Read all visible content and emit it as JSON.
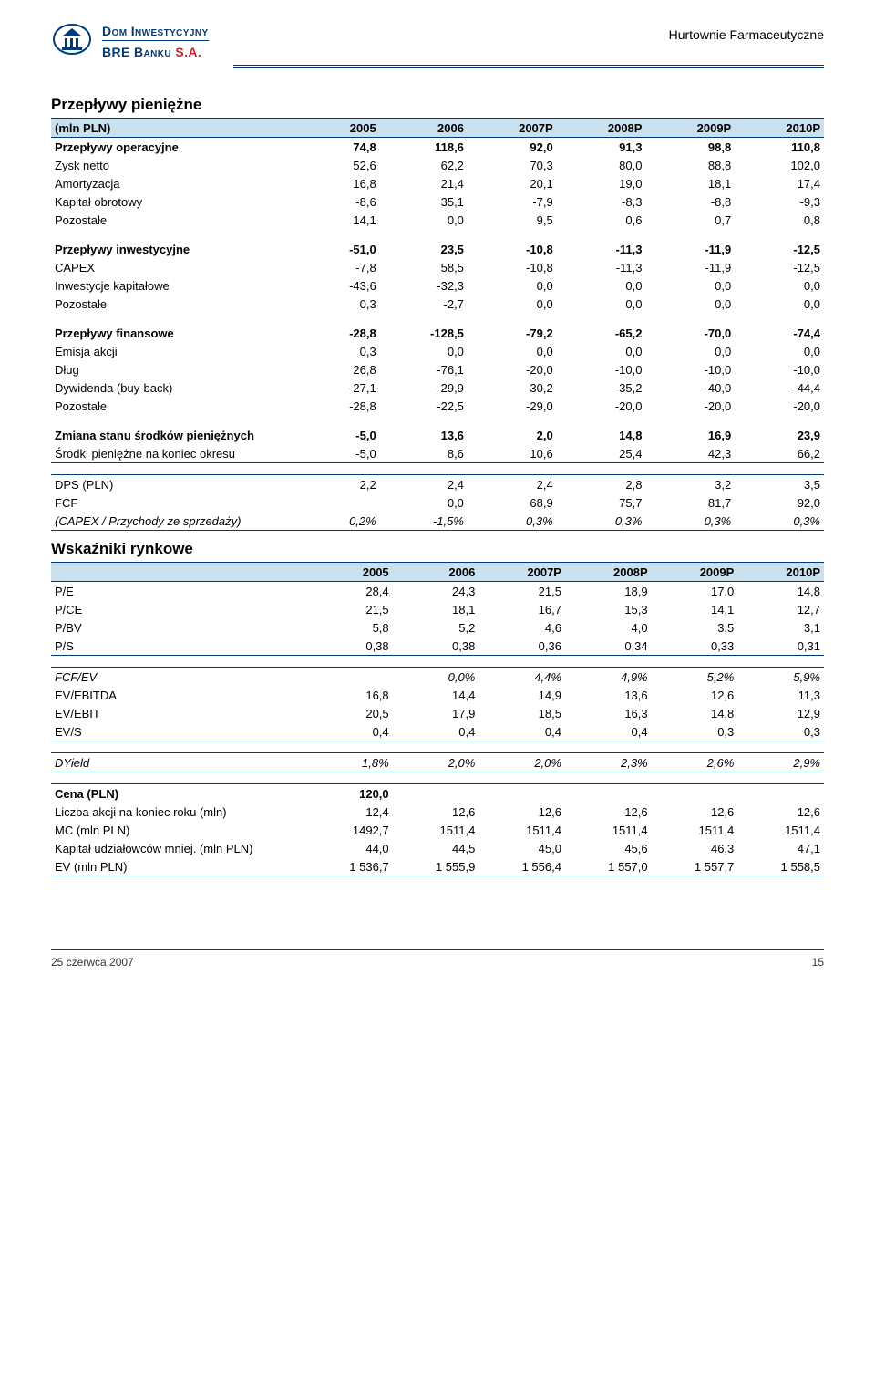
{
  "header": {
    "logo_line1_a": "Dom ",
    "logo_line1_b": "Inwestycyjny",
    "logo_line2_a": "BRE Banku ",
    "logo_line2_sa": "S.A.",
    "right_text": "Hurtownie Farmaceutyczne"
  },
  "section1": {
    "title": "Przepływy pieniężne",
    "columns": [
      "(mln PLN)",
      "2005",
      "2006",
      "2007P",
      "2008P",
      "2009P",
      "2010P"
    ],
    "rows": [
      {
        "label": "Przepływy operacyjne",
        "v": [
          "74,8",
          "118,6",
          "92,0",
          "91,3",
          "98,8",
          "110,8"
        ],
        "bold": true
      },
      {
        "label": "Zysk netto",
        "v": [
          "52,6",
          "62,2",
          "70,3",
          "80,0",
          "88,8",
          "102,0"
        ]
      },
      {
        "label": "Amortyzacja",
        "v": [
          "16,8",
          "21,4",
          "20,1",
          "19,0",
          "18,1",
          "17,4"
        ]
      },
      {
        "label": "Kapitał obrotowy",
        "v": [
          "-8,6",
          "35,1",
          "-7,9",
          "-8,3",
          "-8,8",
          "-9,3"
        ]
      },
      {
        "label": "Pozostałe",
        "v": [
          "14,1",
          "0,0",
          "9,5",
          "0,6",
          "0,7",
          "0,8"
        ]
      },
      {
        "spacer": true
      },
      {
        "label": "Przepływy inwestycyjne",
        "v": [
          "-51,0",
          "23,5",
          "-10,8",
          "-11,3",
          "-11,9",
          "-12,5"
        ],
        "bold": true
      },
      {
        "label": "CAPEX",
        "v": [
          "-7,8",
          "58,5",
          "-10,8",
          "-11,3",
          "-11,9",
          "-12,5"
        ]
      },
      {
        "label": "Inwestycje kapitałowe",
        "v": [
          "-43,6",
          "-32,3",
          "0,0",
          "0,0",
          "0,0",
          "0,0"
        ]
      },
      {
        "label": "Pozostałe",
        "v": [
          "0,3",
          "-2,7",
          "0,0",
          "0,0",
          "0,0",
          "0,0"
        ]
      },
      {
        "spacer": true
      },
      {
        "label": "Przepływy finansowe",
        "v": [
          "-28,8",
          "-128,5",
          "-79,2",
          "-65,2",
          "-70,0",
          "-74,4"
        ],
        "bold": true
      },
      {
        "label": "Emisja akcji",
        "v": [
          "0,3",
          "0,0",
          "0,0",
          "0,0",
          "0,0",
          "0,0"
        ]
      },
      {
        "label": "Dług",
        "v": [
          "26,8",
          "-76,1",
          "-20,0",
          "-10,0",
          "-10,0",
          "-10,0"
        ]
      },
      {
        "label": "Dywidenda (buy-back)",
        "v": [
          "-27,1",
          "-29,9",
          "-30,2",
          "-35,2",
          "-40,0",
          "-44,4"
        ]
      },
      {
        "label": "Pozostałe",
        "v": [
          "-28,8",
          "-22,5",
          "-29,0",
          "-20,0",
          "-20,0",
          "-20,0"
        ]
      },
      {
        "spacer": true
      },
      {
        "label": "Zmiana stanu środków pieniężnych",
        "v": [
          "-5,0",
          "13,6",
          "2,0",
          "14,8",
          "16,9",
          "23,9"
        ],
        "bold": true
      },
      {
        "label": "Środki pieniężne na koniec okresu",
        "v": [
          "-5,0",
          "8,6",
          "10,6",
          "25,4",
          "42,3",
          "66,2"
        ],
        "underline": true
      },
      {
        "spacer": true
      },
      {
        "label": "DPS (PLN)",
        "v": [
          "2,2",
          "2,4",
          "2,4",
          "2,8",
          "3,2",
          "3,5"
        ],
        "underline_top": true
      },
      {
        "label": "FCF",
        "v": [
          "0,0",
          "68,9",
          "75,7",
          "81,7",
          "92,0",
          ""
        ],
        "shift": true
      },
      {
        "label": "(CAPEX / Przychody ze sprzedaży)",
        "v": [
          "0,2%",
          "-1,5%",
          "0,3%",
          "0,3%",
          "0,3%",
          "0,3%"
        ],
        "italic": true,
        "underline": true
      }
    ],
    "fcf_row": {
      "label": "FCF",
      "v": [
        "",
        "0,0",
        "68,9",
        "75,7",
        "81,7",
        "92,0"
      ]
    }
  },
  "section2": {
    "title": "Wskaźniki rynkowe",
    "columns": [
      "",
      "2005",
      "2006",
      "2007P",
      "2008P",
      "2009P",
      "2010P"
    ],
    "rows": [
      {
        "label": "P/E",
        "v": [
          "28,4",
          "24,3",
          "21,5",
          "18,9",
          "17,0",
          "14,8"
        ]
      },
      {
        "label": "P/CE",
        "v": [
          "21,5",
          "18,1",
          "16,7",
          "15,3",
          "14,1",
          "12,7"
        ]
      },
      {
        "label": "P/BV",
        "v": [
          "5,8",
          "5,2",
          "4,6",
          "4,0",
          "3,5",
          "3,1"
        ]
      },
      {
        "label": "P/S",
        "v": [
          "0,38",
          "0,38",
          "0,36",
          "0,34",
          "0,33",
          "0,31"
        ],
        "underline": true
      },
      {
        "spacer": true
      },
      {
        "label": "FCF/EV",
        "v": [
          "",
          "0,0%",
          "4,4%",
          "4,9%",
          "5,2%",
          "5,9%"
        ],
        "italic": true,
        "underline_top": true
      },
      {
        "label": "EV/EBITDA",
        "v": [
          "16,8",
          "14,4",
          "14,9",
          "13,6",
          "12,6",
          "11,3"
        ]
      },
      {
        "label": "EV/EBIT",
        "v": [
          "20,5",
          "17,9",
          "18,5",
          "16,3",
          "14,8",
          "12,9"
        ]
      },
      {
        "label": "EV/S",
        "v": [
          "0,4",
          "0,4",
          "0,4",
          "0,4",
          "0,3",
          "0,3"
        ],
        "underline": true
      },
      {
        "spacer": true
      },
      {
        "label": "DYield",
        "v": [
          "1,8%",
          "2,0%",
          "2,0%",
          "2,3%",
          "2,6%",
          "2,9%"
        ],
        "italic": true,
        "underline": true,
        "underline_top": true
      },
      {
        "spacer": true
      },
      {
        "label": "Cena (PLN)",
        "v": [
          "120,0",
          "",
          "",
          "",
          "",
          ""
        ],
        "bold": true,
        "underline_top": true
      },
      {
        "label": "Liczba akcji na koniec roku (mln)",
        "v": [
          "12,4",
          "12,6",
          "12,6",
          "12,6",
          "12,6",
          "12,6"
        ]
      },
      {
        "label": "MC (mln PLN)",
        "v": [
          "1492,7",
          "1511,4",
          "1511,4",
          "1511,4",
          "1511,4",
          "1511,4"
        ]
      },
      {
        "label": "Kapitał udziałowców mniej. (mln PLN)",
        "v": [
          "44,0",
          "44,5",
          "45,0",
          "45,6",
          "46,3",
          "47,1"
        ]
      },
      {
        "label": "EV (mln PLN)",
        "v": [
          "1 536,7",
          "1 555,9",
          "1 556,4",
          "1 557,0",
          "1 557,7",
          "1 558,5"
        ],
        "underline": true
      }
    ]
  },
  "footer": {
    "date": "25 czerwca 2007",
    "page": "15"
  },
  "style": {
    "header_bg": "#c9e0ef",
    "border_color": "#003a78",
    "logo_text_color": "#003a78",
    "logo_sa_color": "#c0272d"
  }
}
